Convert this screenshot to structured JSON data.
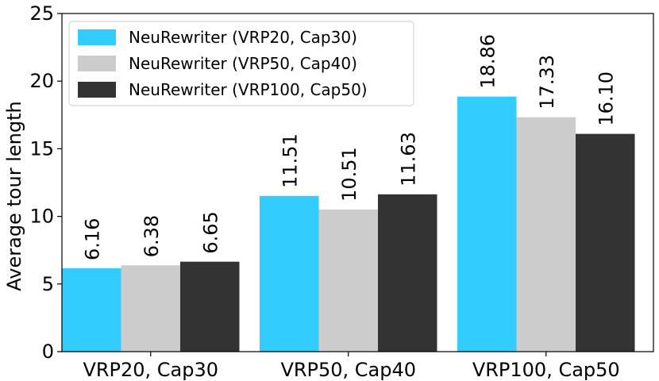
{
  "chart_data": {
    "type": "bar",
    "categories": [
      "VRP20, Cap30",
      "VRP50, Cap40",
      "VRP100, Cap50"
    ],
    "series": [
      {
        "name": "NeuRewriter (VRP20, Cap30)",
        "values": [
          6.16,
          11.51,
          18.86
        ],
        "labels": [
          "6.16",
          "11.51",
          "18.86"
        ],
        "color": "#33ccff"
      },
      {
        "name": "NeuRewriter (VRP50, Cap40)",
        "values": [
          6.38,
          10.51,
          17.33
        ],
        "labels": [
          "6.38",
          "10.51",
          "17.33"
        ],
        "color": "#cccccc"
      },
      {
        "name": "NeuRewriter (VRP100, Cap50)",
        "values": [
          6.65,
          11.63,
          16.1
        ],
        "labels": [
          "6.65",
          "11.63",
          "16.10"
        ],
        "color": "#333333"
      }
    ],
    "ylabel": "Average tour length",
    "xlabel": "",
    "title": "",
    "ylim": [
      0,
      25
    ],
    "yticks": [
      0,
      5,
      10,
      15,
      20,
      25
    ],
    "ytick_labels": [
      "0",
      "5",
      "10",
      "15",
      "20",
      "25"
    ],
    "grid": false,
    "legend_position": "top-left"
  }
}
